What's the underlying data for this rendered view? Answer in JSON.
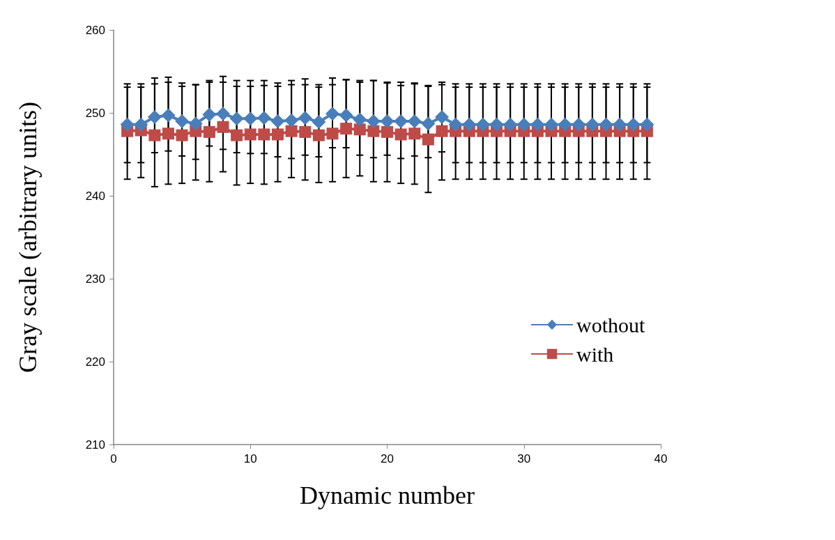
{
  "chart_data": {
    "type": "line",
    "xlabel": "Dynamic number",
    "ylabel": "Gray scale (arbitrary units)",
    "x": [
      1,
      2,
      3,
      4,
      5,
      6,
      7,
      8,
      9,
      10,
      11,
      12,
      13,
      14,
      15,
      16,
      17,
      18,
      19,
      20,
      21,
      22,
      23,
      24,
      25,
      26,
      27,
      28,
      29,
      30,
      31,
      32,
      33,
      34,
      35,
      36,
      37,
      38,
      39
    ],
    "series": [
      {
        "name": "wothout",
        "color": "#4a7ebb",
        "marker": "diamond",
        "values": [
          248.6,
          248.6,
          249.5,
          249.7,
          249.0,
          248.7,
          249.8,
          249.9,
          249.3,
          249.3,
          249.4,
          249.0,
          249.1,
          249.4,
          248.9,
          249.9,
          249.7,
          249.2,
          249.0,
          249.0,
          249.0,
          249.0,
          248.7,
          249.5,
          248.6,
          248.6,
          248.6,
          248.6,
          248.6,
          248.6,
          248.6,
          248.6,
          248.6,
          248.6,
          248.6,
          248.6,
          248.6,
          248.6,
          248.6
        ],
        "errors": [
          [
            244.0,
            253.5
          ],
          [
            244.0,
            253.5
          ],
          [
            245.2,
            254.2
          ],
          [
            245.4,
            254.3
          ],
          [
            244.8,
            253.6
          ],
          [
            244.4,
            253.4
          ],
          [
            246.0,
            253.9
          ],
          [
            245.6,
            254.4
          ],
          [
            245.2,
            253.9
          ],
          [
            245.1,
            253.9
          ],
          [
            245.1,
            253.9
          ],
          [
            244.7,
            253.6
          ],
          [
            244.5,
            253.9
          ],
          [
            244.9,
            254.1
          ],
          [
            244.7,
            253.4
          ],
          [
            245.8,
            254.2
          ],
          [
            245.8,
            254.0
          ],
          [
            244.9,
            253.9
          ],
          [
            244.6,
            253.9
          ],
          [
            244.9,
            253.7
          ],
          [
            244.5,
            253.7
          ],
          [
            244.8,
            253.6
          ],
          [
            244.6,
            253.3
          ],
          [
            245.3,
            253.7
          ],
          [
            244.0,
            253.5
          ],
          [
            244.0,
            253.5
          ],
          [
            244.0,
            253.5
          ],
          [
            244.0,
            253.5
          ],
          [
            244.0,
            253.5
          ],
          [
            244.0,
            253.5
          ],
          [
            244.0,
            253.5
          ],
          [
            244.0,
            253.5
          ],
          [
            244.0,
            253.5
          ],
          [
            244.0,
            253.5
          ],
          [
            244.0,
            253.5
          ],
          [
            244.0,
            253.5
          ],
          [
            244.0,
            253.5
          ],
          [
            244.0,
            253.5
          ],
          [
            244.0,
            253.5
          ]
        ]
      },
      {
        "name": "with",
        "color": "#be4b48",
        "marker": "square",
        "values": [
          247.8,
          247.9,
          247.3,
          247.5,
          247.3,
          247.8,
          247.7,
          248.3,
          247.3,
          247.4,
          247.4,
          247.4,
          247.8,
          247.7,
          247.3,
          247.5,
          248.1,
          248.0,
          247.8,
          247.7,
          247.4,
          247.5,
          246.8,
          247.8,
          247.8,
          247.8,
          247.8,
          247.8,
          247.8,
          247.8,
          247.8,
          247.8,
          247.8,
          247.8,
          247.8,
          247.8,
          247.8,
          247.8,
          247.8
        ],
        "errors": [
          [
            242.0,
            253.1
          ],
          [
            242.2,
            253.1
          ],
          [
            241.1,
            253.5
          ],
          [
            241.4,
            253.7
          ],
          [
            241.5,
            253.2
          ],
          [
            241.9,
            253.4
          ],
          [
            241.7,
            253.7
          ],
          [
            242.9,
            253.7
          ],
          [
            241.3,
            253.2
          ],
          [
            241.5,
            253.2
          ],
          [
            241.4,
            253.3
          ],
          [
            241.7,
            253.2
          ],
          [
            242.2,
            253.4
          ],
          [
            241.9,
            253.4
          ],
          [
            241.6,
            253.1
          ],
          [
            241.7,
            253.4
          ],
          [
            242.2,
            254.0
          ],
          [
            242.4,
            253.7
          ],
          [
            241.7,
            253.9
          ],
          [
            241.7,
            253.6
          ],
          [
            241.5,
            253.3
          ],
          [
            241.4,
            253.5
          ],
          [
            240.4,
            253.2
          ],
          [
            241.9,
            253.4
          ],
          [
            242.0,
            253.1
          ],
          [
            242.0,
            253.1
          ],
          [
            242.0,
            253.1
          ],
          [
            242.0,
            253.1
          ],
          [
            242.0,
            253.1
          ],
          [
            242.0,
            253.1
          ],
          [
            242.0,
            253.1
          ],
          [
            242.0,
            253.1
          ],
          [
            242.0,
            253.1
          ],
          [
            242.0,
            253.1
          ],
          [
            242.0,
            253.1
          ],
          [
            242.0,
            253.1
          ],
          [
            242.0,
            253.1
          ],
          [
            242.0,
            253.1
          ],
          [
            242.0,
            253.1
          ]
        ]
      }
    ],
    "xlim": [
      0,
      40
    ],
    "xticks": [
      0,
      10,
      20,
      30,
      40
    ],
    "ylim": [
      210,
      260
    ],
    "yticks": [
      210,
      220,
      230,
      240,
      250,
      260
    ],
    "grid": false,
    "legend": "right",
    "line_style": "solid"
  }
}
